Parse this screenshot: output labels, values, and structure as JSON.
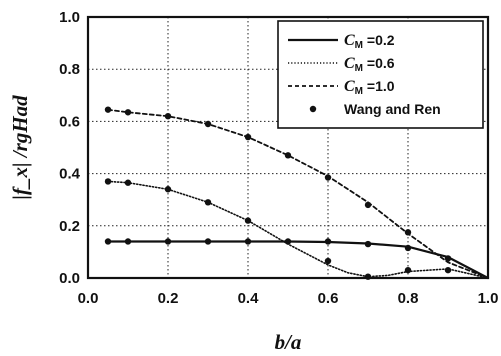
{
  "chart_data": {
    "type": "line",
    "xlabel": "b/a",
    "ylabel": "|f_x| /rgHad",
    "xlim": [
      0.0,
      1.0
    ],
    "ylim": [
      0.0,
      1.0
    ],
    "x_ticks": [
      "0.0",
      "0.2",
      "0.4",
      "0.6",
      "0.8",
      "1.0"
    ],
    "y_ticks": [
      "0.0",
      "0.2",
      "0.4",
      "0.6",
      "0.8",
      "1.0"
    ],
    "grid": true,
    "legend_position": "top-right",
    "series": [
      {
        "name": "C_M =0.2",
        "style": "solid",
        "x": [
          0.05,
          0.1,
          0.2,
          0.3,
          0.4,
          0.5,
          0.6,
          0.7,
          0.8,
          0.9,
          1.0
        ],
        "y": [
          0.14,
          0.14,
          0.14,
          0.14,
          0.14,
          0.14,
          0.138,
          0.132,
          0.12,
          0.08,
          0.0
        ]
      },
      {
        "name": "C_M =0.6",
        "style": "dotted",
        "x": [
          0.05,
          0.1,
          0.2,
          0.3,
          0.4,
          0.5,
          0.6,
          0.65,
          0.7,
          0.75,
          0.8,
          0.9,
          1.0
        ],
        "y": [
          0.37,
          0.365,
          0.34,
          0.29,
          0.22,
          0.13,
          0.05,
          0.02,
          0.005,
          0.01,
          0.025,
          0.035,
          0.0
        ]
      },
      {
        "name": "C_M =1.0",
        "style": "dashed",
        "x": [
          0.05,
          0.1,
          0.2,
          0.3,
          0.4,
          0.5,
          0.6,
          0.7,
          0.8,
          0.9,
          1.0
        ],
        "y": [
          0.645,
          0.635,
          0.62,
          0.59,
          0.54,
          0.47,
          0.39,
          0.29,
          0.17,
          0.06,
          0.0
        ]
      },
      {
        "name": "Wang and Ren",
        "style": "markers",
        "points": [
          [
            0.05,
            0.645
          ],
          [
            0.1,
            0.635
          ],
          [
            0.2,
            0.62
          ],
          [
            0.3,
            0.59
          ],
          [
            0.4,
            0.54
          ],
          [
            0.5,
            0.47
          ],
          [
            0.6,
            0.385
          ],
          [
            0.7,
            0.28
          ],
          [
            0.8,
            0.175
          ],
          [
            0.05,
            0.37
          ],
          [
            0.1,
            0.365
          ],
          [
            0.2,
            0.34
          ],
          [
            0.3,
            0.29
          ],
          [
            0.4,
            0.22
          ],
          [
            0.6,
            0.065
          ],
          [
            0.7,
            0.005
          ],
          [
            0.8,
            0.03
          ],
          [
            0.9,
            0.03
          ],
          [
            0.05,
            0.14
          ],
          [
            0.1,
            0.14
          ],
          [
            0.2,
            0.14
          ],
          [
            0.3,
            0.14
          ],
          [
            0.4,
            0.14
          ],
          [
            0.5,
            0.14
          ],
          [
            0.6,
            0.14
          ],
          [
            0.7,
            0.13
          ],
          [
            0.8,
            0.115
          ],
          [
            0.9,
            0.075
          ]
        ]
      }
    ],
    "legend": {
      "cm_prefix": "C",
      "cm_subscript": "M",
      "entries": [
        " =0.2",
        " =0.6",
        " =1.0",
        "Wang and Ren"
      ]
    }
  }
}
